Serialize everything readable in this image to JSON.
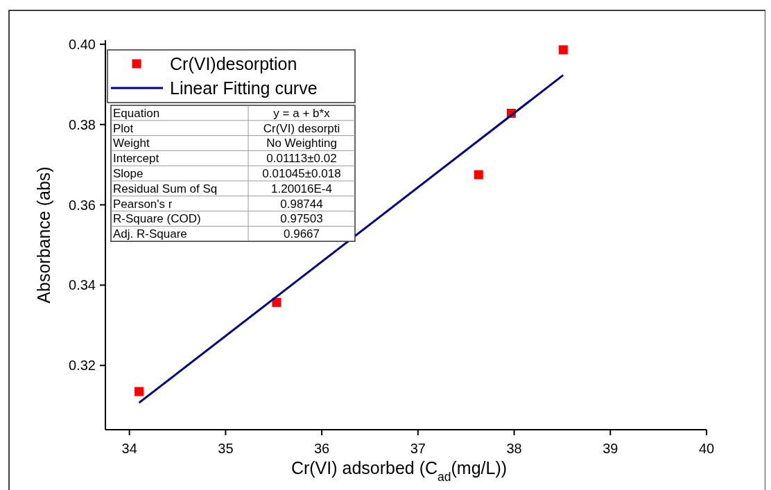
{
  "chart_data": {
    "type": "scatter",
    "xlabel": "Cr(VI) adsorbed (C$_{ad}$(mg/L))",
    "ylabel": "Absorbance (abs)",
    "xlim": [
      33.75,
      40
    ],
    "xticks": [
      34,
      35,
      36,
      37,
      38,
      39,
      40
    ],
    "ylim": [
      0.304,
      0.401
    ],
    "yticks": [
      {
        "value": 0.32,
        "label": "0.32"
      },
      {
        "value": 0.34,
        "label": "0.34"
      },
      {
        "value": 0.36,
        "label": "0.36"
      },
      {
        "value": 0.38,
        "label": "0.38"
      },
      {
        "value": 0.4,
        "label": "0.40"
      }
    ],
    "legend": "top left",
    "marker": "square",
    "grid": false,
    "series": [
      {
        "name": "Cr(VI)desorption",
        "color": "#ff0000",
        "x": [
          34.1,
          35.53,
          37.63,
          37.97,
          38.51
        ],
        "values": [
          0.3135,
          0.3357,
          0.3675,
          0.3828,
          0.3986
        ]
      },
      {
        "name": "Linear Fitting curve",
        "type": "line",
        "color": "#000080",
        "line_style": "solid",
        "marker": "none",
        "x": [
          34.1,
          38.51
        ],
        "values": [
          0.3107,
          0.3923
        ]
      }
    ],
    "annotations": [
      "Equation",
      "y = a + b*x",
      "Plot",
      "Cr(VI) desorpti",
      "Weight",
      "No Weighting",
      "Intercept",
      "0.01113±0.02",
      "Slope",
      "0.01045±0.018",
      "Residual Sum of Sq",
      "1.20016E-4",
      "Pearson's r",
      "0.98744",
      "R-Square (COD)",
      "0.97503",
      "Adj. R-Square",
      "0.9667"
    ]
  }
}
